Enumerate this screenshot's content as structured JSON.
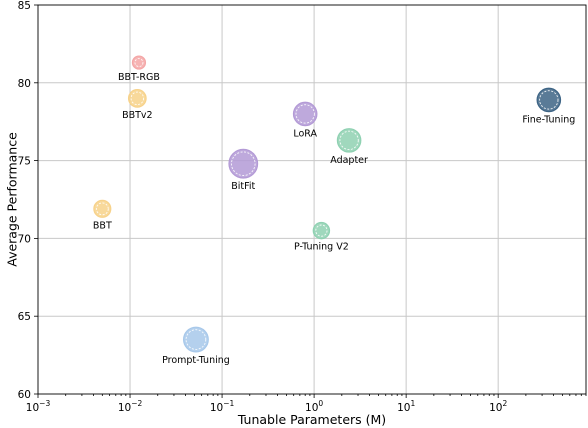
{
  "chart_data": {
    "type": "scatter",
    "title": "",
    "xlabel": "Tunable Parameters (M)",
    "ylabel": "Average Performance",
    "xscale": "log",
    "xlim": [
      0.001,
      900
    ],
    "ylim": [
      60,
      85
    ],
    "grid": true,
    "legend": "none",
    "x_ticks": [
      {
        "base": "10",
        "exp": "−3",
        "value": 0.001
      },
      {
        "base": "10",
        "exp": "−2",
        "value": 0.01
      },
      {
        "base": "10",
        "exp": "−1",
        "value": 0.1
      },
      {
        "base": "10",
        "exp": "0",
        "value": 1
      },
      {
        "base": "10",
        "exp": "1",
        "value": 10
      },
      {
        "base": "10",
        "exp": "2",
        "value": 100
      }
    ],
    "y_ticks": [
      {
        "label": "60",
        "value": 60
      },
      {
        "label": "65",
        "value": 65
      },
      {
        "label": "70",
        "value": 70
      },
      {
        "label": "75",
        "value": 75
      },
      {
        "label": "80",
        "value": 80
      },
      {
        "label": "85",
        "value": 85
      }
    ],
    "points": [
      {
        "label": "BBT-RGB",
        "x": 0.0125,
        "y": 81.3,
        "size": 1.0,
        "color": "#f4a6a6",
        "label_pos": "below"
      },
      {
        "label": "BBTv2",
        "x": 0.012,
        "y": 79.0,
        "size": 1.35,
        "color": "#f7d28a",
        "label_pos": "below"
      },
      {
        "label": "BBT",
        "x": 0.005,
        "y": 71.9,
        "size": 1.3,
        "color": "#f7d28a",
        "label_pos": "below"
      },
      {
        "label": "Prompt-Tuning",
        "x": 0.052,
        "y": 63.5,
        "size": 1.9,
        "color": "#a7c8ea",
        "label_pos": "below"
      },
      {
        "label": "BitFit",
        "x": 0.17,
        "y": 74.8,
        "size": 2.2,
        "color": "#b39ad6",
        "label_pos": "below"
      },
      {
        "label": "LoRA",
        "x": 0.8,
        "y": 78.0,
        "size": 1.8,
        "color": "#b39ad6",
        "label_pos": "below"
      },
      {
        "label": "P-Tuning V2",
        "x": 1.2,
        "y": 70.5,
        "size": 1.25,
        "color": "#8fd1b2",
        "label_pos": "below"
      },
      {
        "label": "Adapter",
        "x": 2.4,
        "y": 76.3,
        "size": 1.8,
        "color": "#8fd1b2",
        "label_pos": "below"
      },
      {
        "label": "Fine-Tuning",
        "x": 355,
        "y": 78.9,
        "size": 1.8,
        "color": "#3d6485",
        "label_pos": "below"
      }
    ]
  }
}
